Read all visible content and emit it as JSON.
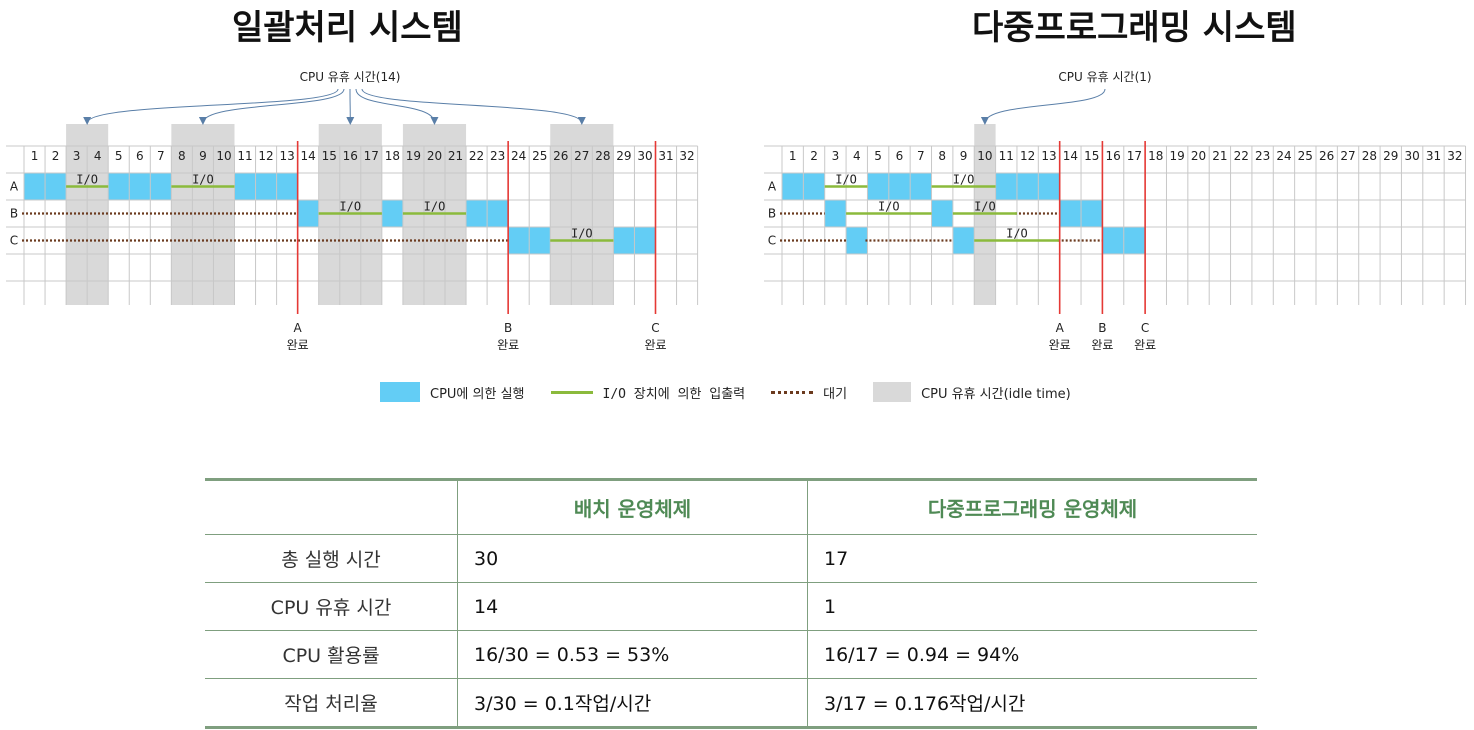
{
  "titles": {
    "left": "일괄처리 시스템",
    "right": "다중프로그래밍 시스템"
  },
  "batch": {
    "idle_label": "CPU 유휴 시간(14)",
    "columns": 32,
    "rows": [
      "A",
      "B",
      "C"
    ],
    "cpu": [
      {
        "job": "A",
        "start": 1,
        "end": 2
      },
      {
        "job": "A",
        "start": 5,
        "end": 7
      },
      {
        "job": "A",
        "start": 11,
        "end": 13
      },
      {
        "job": "B",
        "start": 14,
        "end": 14
      },
      {
        "job": "B",
        "start": 18,
        "end": 18
      },
      {
        "job": "B",
        "start": 22,
        "end": 23
      },
      {
        "job": "C",
        "start": 24,
        "end": 25
      },
      {
        "job": "C",
        "start": 29,
        "end": 30
      }
    ],
    "io": [
      {
        "job": "A",
        "start": 3,
        "end": 4,
        "label": "I/O"
      },
      {
        "job": "A",
        "start": 8,
        "end": 10,
        "label": "I/O"
      },
      {
        "job": "B",
        "start": 15,
        "end": 17,
        "label": "I/O"
      },
      {
        "job": "B",
        "start": 19,
        "end": 21,
        "label": "I/O"
      },
      {
        "job": "C",
        "start": 26,
        "end": 28,
        "label": "I/O"
      }
    ],
    "wait": [
      {
        "job": "B",
        "start": 1,
        "end": 13
      },
      {
        "job": "C",
        "start": 1,
        "end": 23
      }
    ],
    "idle": [
      {
        "start": 3,
        "end": 4
      },
      {
        "start": 8,
        "end": 10
      },
      {
        "start": 15,
        "end": 17
      },
      {
        "start": 19,
        "end": 21
      },
      {
        "start": 26,
        "end": 28
      }
    ],
    "completions": [
      {
        "after": 13,
        "job": "A",
        "label": "완료"
      },
      {
        "after": 23,
        "job": "B",
        "label": "완료"
      },
      {
        "after": 30,
        "job": "C",
        "label": "완료"
      }
    ]
  },
  "multi": {
    "idle_label": "CPU 유휴 시간(1)",
    "columns": 32,
    "rows": [
      "A",
      "B",
      "C"
    ],
    "cpu": [
      {
        "job": "A",
        "start": 1,
        "end": 2
      },
      {
        "job": "A",
        "start": 5,
        "end": 7
      },
      {
        "job": "A",
        "start": 11,
        "end": 13
      },
      {
        "job": "B",
        "start": 3,
        "end": 3
      },
      {
        "job": "B",
        "start": 8,
        "end": 8
      },
      {
        "job": "B",
        "start": 14,
        "end": 15
      },
      {
        "job": "C",
        "start": 4,
        "end": 4
      },
      {
        "job": "C",
        "start": 9,
        "end": 9
      },
      {
        "job": "C",
        "start": 16,
        "end": 17
      }
    ],
    "io": [
      {
        "job": "A",
        "start": 3,
        "end": 4,
        "label": "I/O"
      },
      {
        "job": "A",
        "start": 8,
        "end": 10,
        "label": "I/O"
      },
      {
        "job": "B",
        "start": 4,
        "end": 7,
        "label": "I/O"
      },
      {
        "job": "B",
        "start": 9,
        "end": 11,
        "label": "I/O"
      },
      {
        "job": "C",
        "start": 10,
        "end": 13,
        "label": "I/O"
      }
    ],
    "wait": [
      {
        "job": "B",
        "start": 1,
        "end": 2
      },
      {
        "job": "B",
        "start": 12,
        "end": 13
      },
      {
        "job": "C",
        "start": 1,
        "end": 3
      },
      {
        "job": "C",
        "start": 5,
        "end": 8
      },
      {
        "job": "C",
        "start": 14,
        "end": 15
      }
    ],
    "idle": [
      {
        "start": 10,
        "end": 10
      }
    ],
    "completions": [
      {
        "after": 13,
        "job": "A",
        "label": "완료"
      },
      {
        "after": 15,
        "job": "B",
        "label": "완료"
      },
      {
        "after": 17,
        "job": "C",
        "label": "완료"
      }
    ]
  },
  "legend": {
    "cpu": "CPU에 의한 실행",
    "io": "I/O 장치에 의한 입출력",
    "wait": "대기",
    "idle": "CPU 유휴 시간(idle time)"
  },
  "colors": {
    "cpu": "#63cdf5",
    "io": "#8bba3c",
    "wait": "#6b3a1e",
    "idle": "#d9d9d9",
    "completion": "#e53935",
    "grid": "#c8c8c8",
    "arrow": "#5a7fa8"
  },
  "table": {
    "headers": [
      "",
      "배치 운영체제",
      "다중프로그래밍 운영체제"
    ],
    "rows": [
      {
        "label": "총 실행 시간",
        "batch": "30",
        "multi": "17"
      },
      {
        "label": "CPU 유휴 시간",
        "batch": "14",
        "multi": "1"
      },
      {
        "label": "CPU 활용률",
        "batch": "16/30 = 0.53 = 53%",
        "multi": "16/17 = 0.94 = 94%"
      },
      {
        "label": "작업 처리율",
        "batch": "3/30 = 0.1작업/시간",
        "multi": "3/17 = 0.176작업/시간"
      }
    ]
  }
}
